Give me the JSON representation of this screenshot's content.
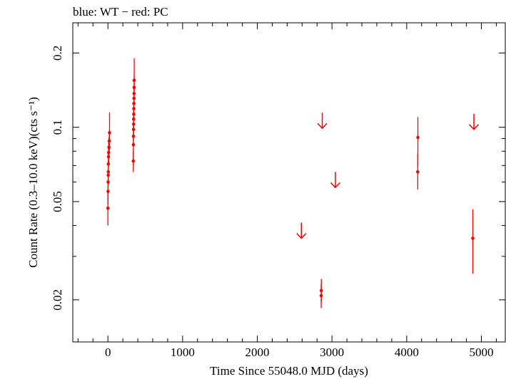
{
  "chart_data": {
    "type": "scatter",
    "title": "blue: WT − red: PC",
    "xlabel": "Time Since 55048.0 MJD (days)",
    "ylabel": "Count Rate (0.3–10.0 keV)(cts s⁻¹)",
    "xlim": [
      -470,
      5320
    ],
    "ylim": [
      0.0135,
      0.265
    ],
    "y_scale": "log",
    "grid": false,
    "x_ticks": [
      0,
      1000,
      2000,
      3000,
      4000,
      5000
    ],
    "x_tick_labels": [
      "0",
      "1000",
      "2000",
      "3000",
      "4000",
      "5000"
    ],
    "y_ticks": [
      0.02,
      0.05,
      0.1,
      0.2
    ],
    "y_tick_labels": [
      "0.02",
      "0.05",
      "0.1",
      "0.2"
    ],
    "colors": {
      "PC": "#ff0000",
      "WT": "#0000ff"
    },
    "series": [
      {
        "name": "PC",
        "color": "#ff0000",
        "points": [
          {
            "x": 0,
            "y": 0.047,
            "ylo": 0.04,
            "yhi": 0.055
          },
          {
            "x": 2,
            "y": 0.055,
            "ylo": 0.049,
            "yhi": 0.061
          },
          {
            "x": 3,
            "y": 0.06,
            "ylo": 0.054,
            "yhi": 0.066
          },
          {
            "x": 4,
            "y": 0.064,
            "ylo": 0.058,
            "yhi": 0.071
          },
          {
            "x": 5,
            "y": 0.066,
            "ylo": 0.06,
            "yhi": 0.073
          },
          {
            "x": 6,
            "y": 0.071,
            "ylo": 0.064,
            "yhi": 0.078
          },
          {
            "x": 8,
            "y": 0.076,
            "ylo": 0.069,
            "yhi": 0.083
          },
          {
            "x": 10,
            "y": 0.079,
            "ylo": 0.071,
            "yhi": 0.087
          },
          {
            "x": 14,
            "y": 0.083,
            "ylo": 0.075,
            "yhi": 0.091
          },
          {
            "x": 18,
            "y": 0.088,
            "ylo": 0.08,
            "yhi": 0.097
          },
          {
            "x": 22,
            "y": 0.095,
            "ylo": 0.081,
            "yhi": 0.115
          },
          {
            "x": 340,
            "y": 0.073,
            "ylo": 0.066,
            "yhi": 0.081
          },
          {
            "x": 341,
            "y": 0.085,
            "ylo": 0.07,
            "yhi": 0.095
          },
          {
            "x": 342,
            "y": 0.092,
            "ylo": 0.083,
            "yhi": 0.102
          },
          {
            "x": 343,
            "y": 0.098,
            "ylo": 0.089,
            "yhi": 0.108
          },
          {
            "x": 344,
            "y": 0.103,
            "ylo": 0.094,
            "yhi": 0.113
          },
          {
            "x": 345,
            "y": 0.108,
            "ylo": 0.098,
            "yhi": 0.118
          },
          {
            "x": 346,
            "y": 0.113,
            "ylo": 0.103,
            "yhi": 0.124
          },
          {
            "x": 347,
            "y": 0.119,
            "ylo": 0.108,
            "yhi": 0.13
          },
          {
            "x": 348,
            "y": 0.125,
            "ylo": 0.114,
            "yhi": 0.137
          },
          {
            "x": 349,
            "y": 0.131,
            "ylo": 0.119,
            "yhi": 0.143
          },
          {
            "x": 350,
            "y": 0.137,
            "ylo": 0.125,
            "yhi": 0.15
          },
          {
            "x": 351,
            "y": 0.145,
            "ylo": 0.132,
            "yhi": 0.159
          },
          {
            "x": 352,
            "y": 0.155,
            "ylo": 0.14,
            "yhi": 0.19
          },
          {
            "x": 2855,
            "y": 0.0208,
            "ylo": 0.0185,
            "yhi": 0.0232
          },
          {
            "x": 2857,
            "y": 0.0218,
            "ylo": 0.0195,
            "yhi": 0.0243
          },
          {
            "x": 4148,
            "y": 0.066,
            "ylo": 0.056,
            "yhi": 0.078
          },
          {
            "x": 4150,
            "y": 0.091,
            "ylo": 0.07,
            "yhi": 0.11
          },
          {
            "x": 4885,
            "y": 0.0355,
            "ylo": 0.0255,
            "yhi": 0.0465
          }
        ],
        "upper_limits": [
          {
            "x": 2590,
            "y": 0.0355
          },
          {
            "x": 2870,
            "y": 0.099
          },
          {
            "x": 3045,
            "y": 0.057
          },
          {
            "x": 4900,
            "y": 0.098
          }
        ]
      }
    ]
  }
}
